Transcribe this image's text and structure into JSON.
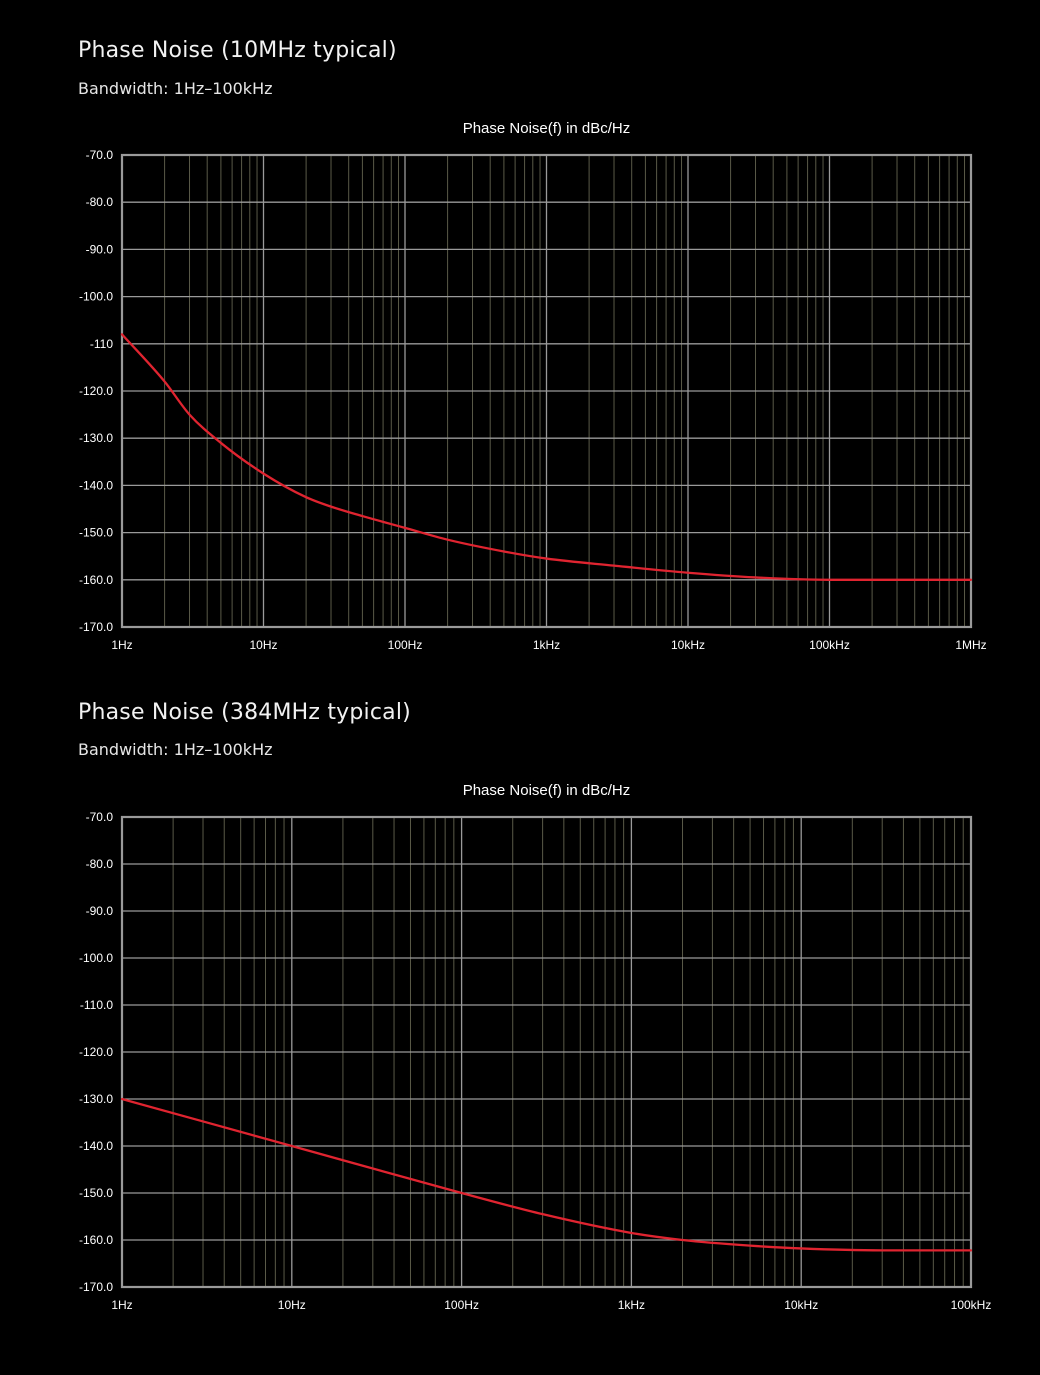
{
  "sections": [
    {
      "heading": "Phase Noise (10MHz typical)",
      "subheading": "Bandwidth: 1Hz–100kHz"
    },
    {
      "heading": "Phase Noise (384MHz typical)",
      "subheading": "Bandwidth: 1Hz–100kHz"
    }
  ],
  "colors": {
    "background": "#000000",
    "grid_major": "#9a9a9a",
    "grid_minor": "#5a5a48",
    "series": "#e02430",
    "text": "#ffffff"
  },
  "chart_data": [
    {
      "type": "line",
      "title": "Phase Noise(f) in dBc/Hz",
      "xscale": "log",
      "xlim": [
        1,
        1000000
      ],
      "ylim": [
        -170,
        -70
      ],
      "xticks": [
        1,
        10,
        100,
        1000,
        10000,
        100000,
        1000000
      ],
      "xtick_labels": [
        "1Hz",
        "10Hz",
        "100Hz",
        "1kHz",
        "10kHz",
        "100kHz",
        "1MHz"
      ],
      "yticks": [
        -70,
        -80,
        -90,
        -100,
        -110,
        -120,
        -130,
        -140,
        -150,
        -160,
        -170
      ],
      "ytick_labels": [
        "-70.0",
        "-80.0",
        "-90.0",
        "-100.0",
        "-110",
        "-120.0",
        "-130.0",
        "-140.0",
        "-150.0",
        "-160.0",
        "-170.0"
      ],
      "grid": true,
      "series": [
        {
          "x": [
            1,
            2,
            3,
            5,
            10,
            20,
            30,
            50,
            100,
            200,
            500,
            1000,
            3000,
            10000,
            30000,
            100000,
            300000,
            1000000
          ],
          "y": [
            -108,
            -118,
            -125,
            -131,
            -137.5,
            -142.5,
            -144.5,
            -146.5,
            -149,
            -151.5,
            -154,
            -155.5,
            -157,
            -158.5,
            -159.5,
            -160,
            -160,
            -160
          ]
        }
      ]
    },
    {
      "type": "line",
      "title": "Phase Noise(f) in dBc/Hz",
      "xscale": "log",
      "xlim": [
        1,
        100000
      ],
      "ylim": [
        -170,
        -70
      ],
      "xticks": [
        1,
        10,
        100,
        1000,
        10000,
        100000
      ],
      "xtick_labels": [
        "1Hz",
        "10Hz",
        "100Hz",
        "1kHz",
        "10kHz",
        "100kHz"
      ],
      "yticks": [
        -70,
        -80,
        -90,
        -100,
        -110,
        -120,
        -130,
        -140,
        -150,
        -160,
        -170
      ],
      "ytick_labels": [
        "-70.0",
        "-80.0",
        "-90.0",
        "-100.0",
        "-110.0",
        "-120.0",
        "-130.0",
        "-140.0",
        "-150.0",
        "-160.0",
        "-170.0"
      ],
      "grid": true,
      "series": [
        {
          "x": [
            1,
            10,
            100,
            300,
            1000,
            2000,
            5000,
            10000,
            30000,
            100000
          ],
          "y": [
            -130,
            -140,
            -150,
            -154.5,
            -158.5,
            -160,
            -161.2,
            -161.8,
            -162.2,
            -162.2
          ]
        }
      ]
    }
  ]
}
